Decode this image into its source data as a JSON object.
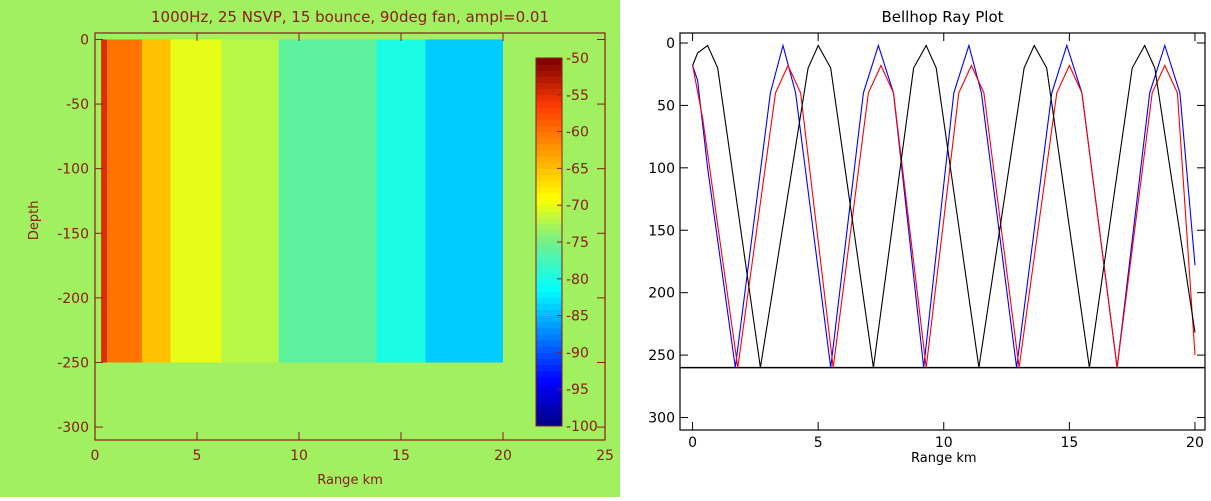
{
  "chart_data": [
    {
      "type": "heatmap",
      "title": "1000Hz, 25 NSVP, 15 bounce, 90deg fan, ampl=0.01",
      "xlabel": "Range km",
      "ylabel": "Depth",
      "xlim": [
        0,
        25
      ],
      "ylim": [
        -310,
        5
      ],
      "xticks": [
        0,
        5,
        10,
        15,
        20,
        25
      ],
      "yticks": [
        0,
        -50,
        -100,
        -150,
        -200,
        -250,
        -300
      ],
      "field_extent": {
        "x": [
          0.3,
          20
        ],
        "y": [
          -250,
          0
        ]
      },
      "range_bands": [
        {
          "x0": 0.3,
          "x1": 0.6,
          "value": -55
        },
        {
          "x0": 0.6,
          "x1": 2.3,
          "value": -60
        },
        {
          "x0": 2.3,
          "x1": 3.7,
          "value": -65
        },
        {
          "x0": 3.7,
          "x1": 6.2,
          "value": -70
        },
        {
          "x0": 6.2,
          "x1": 9.0,
          "value": -72
        },
        {
          "x0": 9.0,
          "x1": 13.8,
          "value": -76
        },
        {
          "x0": 13.8,
          "x1": 16.2,
          "value": -80
        },
        {
          "x0": 16.2,
          "x1": 20.0,
          "value": -84
        }
      ],
      "colorbar": {
        "range": [
          -100,
          -50
        ],
        "ticks": [
          -50,
          -55,
          -60,
          -65,
          -70,
          -75,
          -80,
          -85,
          -90,
          -95,
          -100
        ]
      },
      "colors": {
        "background": "#a0f060",
        "axis": "#8b1a1a"
      }
    },
    {
      "type": "line",
      "title": "Bellhop Ray Plot",
      "xlabel": "Range km",
      "ylabel": "",
      "xlim": [
        -0.5,
        20.4
      ],
      "ylim": [
        310,
        -8
      ],
      "y_inverted": true,
      "xticks": [
        0,
        5,
        10,
        15,
        20
      ],
      "yticks": [
        0,
        50,
        100,
        150,
        200,
        250,
        300
      ],
      "bottom_depth": 260,
      "series": [
        {
          "color": "#0000ff",
          "x": [
            0.0,
            0.2,
            0.6,
            1.7,
            3.1,
            3.6,
            4.1,
            5.5,
            6.8,
            7.4,
            8.0,
            9.2,
            10.4,
            11.0,
            11.5,
            12.9,
            14.3,
            14.9,
            15.5,
            16.9,
            18.2,
            18.8,
            19.4,
            20.0
          ],
          "y": [
            18,
            30,
            100,
            260,
            40,
            2,
            40,
            260,
            40,
            2,
            40,
            260,
            40,
            2,
            40,
            260,
            40,
            2,
            40,
            260,
            40,
            2,
            40,
            178
          ]
        },
        {
          "color": "#ff0000",
          "x": [
            0.0,
            0.4,
            1.8,
            3.3,
            3.8,
            4.3,
            5.6,
            7.0,
            7.5,
            8.0,
            9.3,
            10.6,
            11.1,
            11.6,
            13.0,
            14.5,
            15.0,
            15.5,
            16.9,
            18.3,
            18.8,
            19.3,
            20.0
          ],
          "y": [
            18,
            60,
            260,
            40,
            18,
            40,
            260,
            40,
            18,
            40,
            260,
            40,
            18,
            40,
            260,
            40,
            18,
            40,
            260,
            40,
            18,
            40,
            250
          ]
        },
        {
          "color": "#000000",
          "x": [
            0.0,
            0.2,
            0.6,
            1.0,
            2.7,
            4.6,
            5.0,
            5.5,
            7.2,
            8.8,
            9.3,
            9.7,
            11.4,
            13.2,
            13.6,
            14.1,
            15.8,
            17.5,
            18.0,
            18.4,
            20.0
          ],
          "y": [
            18,
            8,
            2,
            20,
            260,
            20,
            2,
            20,
            260,
            20,
            2,
            20,
            260,
            20,
            2,
            20,
            260,
            20,
            2,
            20,
            232
          ]
        }
      ]
    }
  ]
}
